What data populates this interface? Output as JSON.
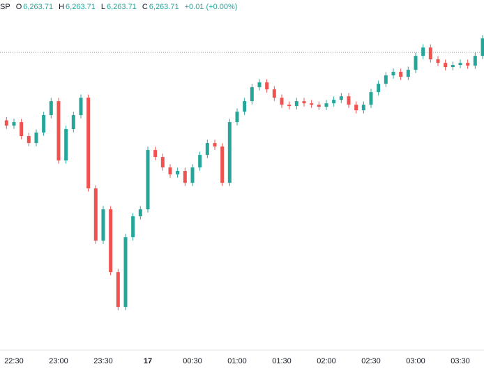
{
  "chart_data": {
    "type": "candlestick",
    "header": {
      "symbol": "SP",
      "fields": [
        {
          "label": "O",
          "value": "6,263.71"
        },
        {
          "label": "H",
          "value": "6,263.71"
        },
        {
          "label": "L",
          "value": "6,263.71"
        },
        {
          "label": "C",
          "value": "6,263.71"
        }
      ],
      "change": "+0.01 (+0.00%)"
    },
    "categories": [
      null,
      "22:30",
      null,
      null,
      null,
      null,
      null,
      "23:00",
      null,
      null,
      null,
      null,
      null,
      "23:30",
      null,
      null,
      null,
      null,
      null,
      "17",
      null,
      null,
      null,
      null,
      null,
      "00:30",
      null,
      null,
      null,
      null,
      null,
      "01:00",
      null,
      null,
      null,
      null,
      null,
      "01:30",
      null,
      null,
      null,
      null,
      null,
      "02:00",
      null,
      null,
      null,
      null,
      null,
      "02:30",
      null,
      null,
      null,
      null,
      null,
      "03:00",
      null,
      null,
      null,
      null,
      null,
      "03:30",
      null,
      null,
      null
    ],
    "open": [
      6254.9,
      6254.33,
      6254.71,
      6253.21,
      6252.46,
      6253.58,
      6255.46,
      6256.96,
      6250.58,
      6253.96,
      6255.46,
      6257.33,
      6247.58,
      6241.96,
      6245.33,
      6238.58,
      6234.83,
      6242.33,
      6244.58,
      6245.33,
      6251.71,
      6250.96,
      6249.83,
      6249.08,
      6249.46,
      6248.18,
      6249.83,
      6251.18,
      6252.46,
      6252.08,
      6248.18,
      6254.71,
      6255.83,
      6256.96,
      6258.46,
      6258.98,
      6258.23,
      6257.33,
      6256.58,
      6256.43,
      6256.96,
      6256.73,
      6256.58,
      6256.36,
      6256.73,
      6257.11,
      6257.48,
      6256.58,
      6255.98,
      6256.58,
      6257.93,
      6258.83,
      6259.73,
      6260.11,
      6259.58,
      6260.33,
      6261.83,
      6262.73,
      6261.46,
      6261.08,
      6260.63,
      6260.86,
      6261.08,
      6260.78,
      6261.83
    ],
    "high": [
      6255.25,
      6255.06,
      6255.06,
      6253.56,
      6253.93,
      6255.81,
      6257.31,
      6257.31,
      6254.31,
      6255.81,
      6257.68,
      6257.68,
      6247.93,
      6245.68,
      6245.68,
      6238.93,
      6242.68,
      6244.93,
      6245.68,
      6252.06,
      6252.06,
      6251.31,
      6250.18,
      6249.81,
      6249.81,
      6250.18,
      6251.53,
      6252.81,
      6252.81,
      6252.43,
      6255.06,
      6256.18,
      6257.31,
      6258.81,
      6259.33,
      6259.33,
      6258.58,
      6257.68,
      6256.93,
      6257.31,
      6257.31,
      6257.08,
      6256.93,
      6257.08,
      6257.46,
      6257.83,
      6257.83,
      6256.93,
      6256.93,
      6258.28,
      6259.18,
      6260.08,
      6260.46,
      6260.46,
      6260.68,
      6262.18,
      6263.08,
      6263.08,
      6261.81,
      6261.43,
      6261.21,
      6261.43,
      6261.43,
      6262.18,
      6264.06
    ],
    "low": [
      6253.98,
      6253.98,
      6252.86,
      6252.11,
      6252.11,
      6253.23,
      6255.11,
      6250.23,
      6250.23,
      6253.61,
      6255.11,
      6247.23,
      6241.61,
      6241.61,
      6238.23,
      6234.48,
      6234.48,
      6241.98,
      6244.23,
      6244.98,
      6250.61,
      6249.48,
      6248.73,
      6248.73,
      6247.83,
      6247.83,
      6249.48,
      6250.83,
      6251.73,
      6247.83,
      6247.83,
      6254.36,
      6255.48,
      6256.61,
      6258.11,
      6257.88,
      6256.98,
      6256.23,
      6256.08,
      6256.08,
      6256.38,
      6256.23,
      6256.01,
      6256.01,
      6256.38,
      6256.76,
      6256.23,
      6255.63,
      6255.63,
      6256.23,
      6257.58,
      6258.48,
      6259.38,
      6259.23,
      6259.23,
      6259.98,
      6261.48,
      6261.11,
      6260.73,
      6260.28,
      6260.28,
      6260.51,
      6260.43,
      6260.43,
      6261.48
    ],
    "close": [
      6254.33,
      6254.71,
      6253.21,
      6252.46,
      6253.58,
      6255.46,
      6256.96,
      6250.58,
      6253.96,
      6255.46,
      6257.33,
      6247.58,
      6241.96,
      6245.33,
      6238.58,
      6234.83,
      6242.33,
      6244.58,
      6245.33,
      6251.71,
      6250.96,
      6249.83,
      6249.08,
      6249.46,
      6248.18,
      6249.83,
      6251.18,
      6252.46,
      6252.08,
      6248.18,
      6254.71,
      6255.83,
      6256.96,
      6258.46,
      6258.98,
      6258.23,
      6257.33,
      6256.58,
      6256.43,
      6256.96,
      6256.73,
      6256.58,
      6256.36,
      6256.73,
      6257.11,
      6257.48,
      6256.58,
      6255.98,
      6256.58,
      6257.93,
      6258.83,
      6259.73,
      6260.11,
      6259.58,
      6260.33,
      6261.83,
      6262.73,
      6261.46,
      6261.08,
      6260.63,
      6260.86,
      6261.08,
      6260.78,
      6261.83,
      6263.71
    ],
    "reference_line": 6262.21,
    "ylim": [
      6230.34,
      6267.84
    ],
    "up_color": "#26a69a",
    "down_color": "#ef5350"
  }
}
